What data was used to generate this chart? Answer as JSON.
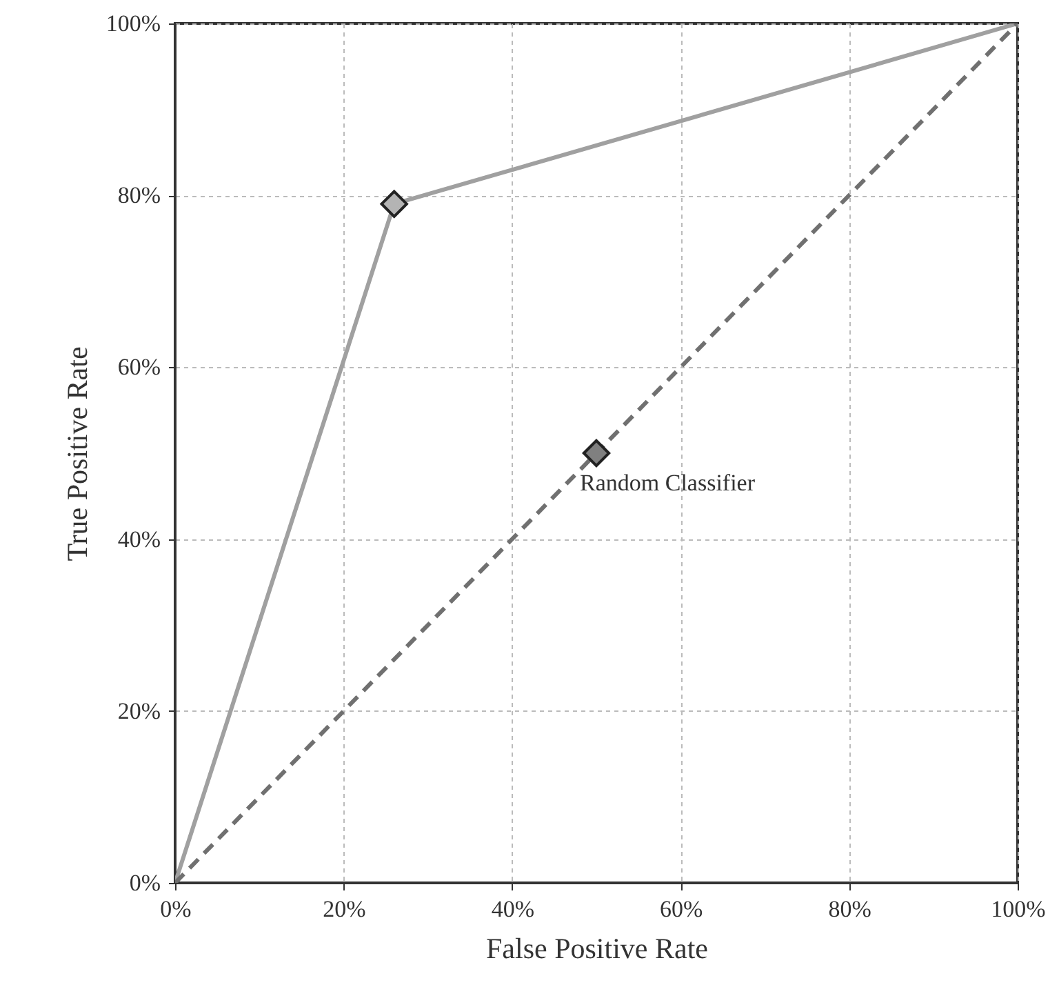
{
  "chart_data": {
    "type": "line",
    "xlabel": "False Positive Rate",
    "ylabel": "True Positive Rate",
    "xlim": [
      0,
      100
    ],
    "ylim": [
      0,
      100
    ],
    "xticks": [
      {
        "value": 0,
        "label": "0%"
      },
      {
        "value": 20,
        "label": "20%"
      },
      {
        "value": 40,
        "label": "40%"
      },
      {
        "value": 60,
        "label": "60%"
      },
      {
        "value": 80,
        "label": "80%"
      },
      {
        "value": 100,
        "label": "100%"
      }
    ],
    "yticks": [
      {
        "value": 0,
        "label": "0%"
      },
      {
        "value": 20,
        "label": "20%"
      },
      {
        "value": 40,
        "label": "40%"
      },
      {
        "value": 60,
        "label": "60%"
      },
      {
        "value": 80,
        "label": "80%"
      },
      {
        "value": 100,
        "label": "100%"
      }
    ],
    "grid": true,
    "series": [
      {
        "type": "line",
        "color": "#a0a0a0",
        "x": [
          0,
          26,
          100
        ],
        "values": [
          0,
          79,
          100
        ],
        "line_style": "solid",
        "marker": "none"
      },
      {
        "type": "line",
        "color": "#707070",
        "x": [
          0,
          100
        ],
        "values": [
          0,
          100
        ],
        "line_style": "dashed",
        "marker": "none"
      },
      {
        "type": "scatter",
        "color": "#b4b4b4",
        "x": [
          26
        ],
        "values": [
          79
        ],
        "marker": "diamond"
      },
      {
        "type": "scatter",
        "color": "#808080",
        "x": [
          50
        ],
        "values": [
          50
        ],
        "marker": "diamond"
      }
    ],
    "annotations": [
      {
        "text": "Random Classifier",
        "x": 50,
        "y": 50
      }
    ]
  }
}
